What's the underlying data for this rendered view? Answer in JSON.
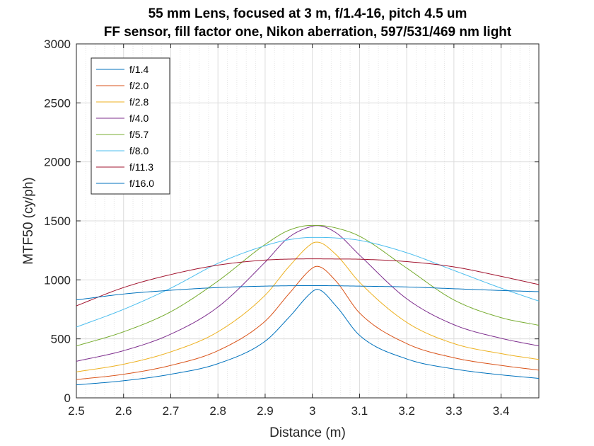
{
  "chart_data": {
    "type": "line",
    "title": "55 mm Lens, focused at 3 m, f/1.4-16, pitch 4.5 um",
    "subtitle": "FF sensor, fill factor one, Nikon aberration, 597/531/469 nm light",
    "xlabel": "Distance (m)",
    "ylabel": "MTF50 (cy/ph)",
    "xlim": [
      2.5,
      3.48
    ],
    "ylim": [
      0,
      3000
    ],
    "xticks": [
      2.5,
      2.6,
      2.7,
      2.8,
      2.9,
      3.0,
      3.1,
      3.2,
      3.3,
      3.4
    ],
    "xtick_labels": [
      "2.5",
      "2.6",
      "2.7",
      "2.8",
      "2.9",
      "3",
      "3.1",
      "3.2",
      "3.3",
      "3.4"
    ],
    "yticks": [
      0,
      500,
      1000,
      1500,
      2000,
      2500,
      3000
    ],
    "ytick_labels": [
      "0",
      "500",
      "1000",
      "1500",
      "2000",
      "2500",
      "3000"
    ],
    "grid": true,
    "minor_grid": true,
    "legend_position": "top-left",
    "x": [
      2.5,
      2.6,
      2.7,
      2.8,
      2.9,
      2.95,
      3.0,
      3.01,
      3.05,
      3.1,
      3.2,
      3.3,
      3.4,
      3.48
    ],
    "series": [
      {
        "name": "f/1.4",
        "color": "#0072BD",
        "values": [
          110,
          145,
          200,
          290,
          480,
          680,
          900,
          920,
          780,
          530,
          330,
          245,
          195,
          165
        ]
      },
      {
        "name": "f/2.0",
        "color": "#D95319",
        "values": [
          155,
          200,
          275,
          400,
          650,
          880,
          1100,
          1115,
          990,
          720,
          460,
          340,
          275,
          235
        ]
      },
      {
        "name": "f/2.8",
        "color": "#EDB120",
        "values": [
          220,
          285,
          390,
          560,
          870,
          1110,
          1310,
          1320,
          1215,
          980,
          640,
          460,
          375,
          325
        ]
      },
      {
        "name": "f/4.0",
        "color": "#7E2F8E",
        "values": [
          310,
          400,
          540,
          770,
          1150,
          1360,
          1455,
          1460,
          1400,
          1210,
          840,
          620,
          505,
          440
        ]
      },
      {
        "name": "f/5.7",
        "color": "#77AC30",
        "values": [
          440,
          560,
          730,
          990,
          1300,
          1420,
          1462,
          1462,
          1440,
          1370,
          1100,
          830,
          680,
          615
        ]
      },
      {
        "name": "f/8.0",
        "color": "#4DBEEE",
        "values": [
          600,
          750,
          930,
          1140,
          1290,
          1340,
          1360,
          1360,
          1355,
          1335,
          1230,
          1080,
          930,
          820
        ]
      },
      {
        "name": "f/11.3",
        "color": "#A2142F",
        "values": [
          780,
          935,
          1045,
          1125,
          1168,
          1176,
          1178,
          1178,
          1177,
          1175,
          1155,
          1110,
          1030,
          960
        ]
      },
      {
        "name": "f/16.0",
        "color": "#0072BD",
        "values": [
          830,
          880,
          912,
          935,
          947,
          950,
          951,
          951,
          950,
          947,
          940,
          925,
          910,
          900
        ]
      }
    ]
  }
}
